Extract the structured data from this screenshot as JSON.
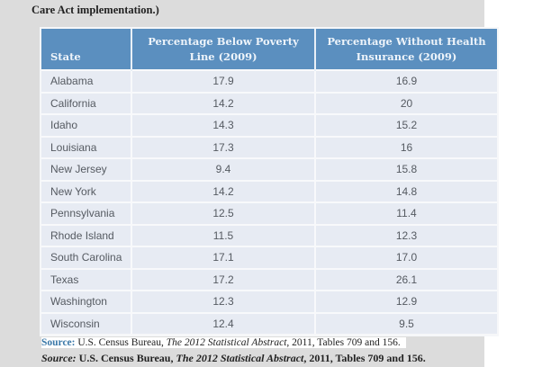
{
  "intro_text": "Care Act implementation.)",
  "table": {
    "headers": {
      "state": "State",
      "poverty": "Percentage Below Poverty Line (2009)",
      "uninsured": "Percentage Without Health Insurance (2009)"
    },
    "rows": [
      {
        "state": "Alabama",
        "poverty": "17.9",
        "uninsured": "16.9"
      },
      {
        "state": "California",
        "poverty": "14.2",
        "uninsured": "20"
      },
      {
        "state": "Idaho",
        "poverty": "14.3",
        "uninsured": "15.2"
      },
      {
        "state": "Louisiana",
        "poverty": "17.3",
        "uninsured": "16"
      },
      {
        "state": "New Jersey",
        "poverty": "9.4",
        "uninsured": "15.8"
      },
      {
        "state": "New York",
        "poverty": "14.2",
        "uninsured": "14.8"
      },
      {
        "state": "Pennsylvania",
        "poverty": "12.5",
        "uninsured": "11.4"
      },
      {
        "state": "Rhode Island",
        "poverty": "11.5",
        "uninsured": "12.3"
      },
      {
        "state": "South Carolina",
        "poverty": "17.1",
        "uninsured": "17.0"
      },
      {
        "state": "Texas",
        "poverty": "17.2",
        "uninsured": "26.1"
      },
      {
        "state": "Washington",
        "poverty": "12.3",
        "uninsured": "12.9"
      },
      {
        "state": "Wisconsin",
        "poverty": "12.4",
        "uninsured": "9.5"
      }
    ]
  },
  "sources": [
    {
      "label": "Source:",
      "prefix": "U.S. Census Bureau, ",
      "publication": "The 2012 Statistical Abstract",
      "suffix": ", 2011, Tables 709 and 156."
    },
    {
      "label": "Source:",
      "prefix": "U.S. Census Bureau, ",
      "publication": "The 2012 Statistical Abstract",
      "suffix": ", 2011, Tables 709 and 156."
    }
  ],
  "colors": {
    "header_bg": "#5b8fbf",
    "row_bg": "#e7ebf3",
    "page_bg": "#dcdcdc",
    "source_label": "#3a78a8"
  }
}
